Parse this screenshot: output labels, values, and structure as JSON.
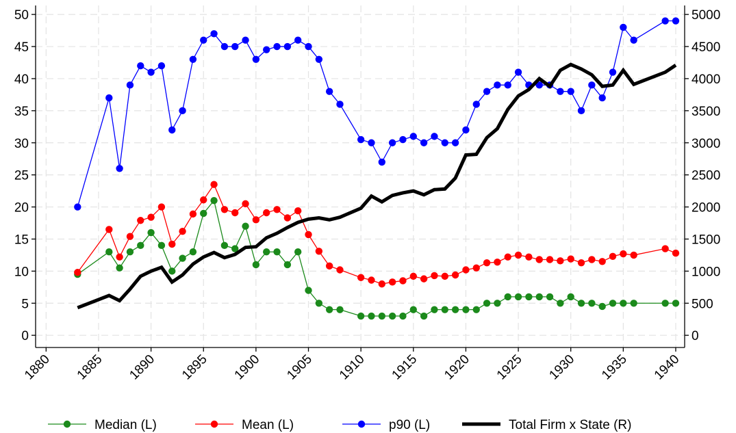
{
  "chart_data": {
    "type": "line",
    "x": [
      1883,
      1886,
      1887,
      1888,
      1889,
      1890,
      1891,
      1892,
      1893,
      1894,
      1895,
      1896,
      1897,
      1898,
      1899,
      1900,
      1901,
      1902,
      1903,
      1904,
      1905,
      1906,
      1907,
      1908,
      1910,
      1911,
      1912,
      1913,
      1914,
      1915,
      1916,
      1917,
      1918,
      1919,
      1920,
      1921,
      1922,
      1923,
      1924,
      1925,
      1926,
      1927,
      1928,
      1929,
      1930,
      1931,
      1932,
      1933,
      1934,
      1935,
      1936,
      1939,
      1940
    ],
    "series": [
      {
        "name": "Median (L)",
        "color": "#1b8a1b",
        "marker": true,
        "values": [
          9.5,
          13,
          10.5,
          13,
          14,
          16,
          14,
          10,
          12,
          13,
          19,
          21,
          14,
          13.5,
          17,
          11,
          13,
          13,
          11,
          13,
          7,
          5,
          4,
          4,
          3,
          3,
          3,
          3,
          3,
          4,
          3,
          4,
          4,
          4,
          4,
          4,
          5,
          5,
          6,
          6,
          6,
          6,
          6,
          5,
          6,
          5,
          5,
          4.5,
          5,
          5,
          5,
          5,
          5
        ]
      },
      {
        "name": "Mean (L)",
        "color": "#ff0000",
        "marker": true,
        "values": [
          9.8,
          16.5,
          12.2,
          15.4,
          17.9,
          18.4,
          20,
          14.2,
          16.2,
          18.9,
          21.1,
          23.5,
          19.6,
          19.1,
          20.5,
          18,
          19.1,
          19.6,
          18.3,
          19.4,
          15.7,
          13.1,
          10.8,
          10.2,
          9,
          8.6,
          8,
          8.3,
          8.5,
          9.2,
          8.8,
          9.3,
          9.2,
          9.4,
          10.2,
          10.5,
          11.3,
          11.4,
          12.2,
          12.5,
          12.2,
          11.8,
          11.8,
          11.6,
          11.9,
          11.3,
          11.8,
          11.5,
          12.3,
          12.7,
          12.5,
          13.5,
          12.8
        ]
      },
      {
        "name": "p90 (L)",
        "color": "#0000ff",
        "marker": true,
        "values": [
          20,
          37,
          26,
          39,
          42,
          41,
          42,
          32,
          35,
          43,
          46,
          47,
          45,
          45,
          46,
          43,
          44.5,
          45,
          45,
          46,
          45,
          43,
          38,
          36,
          30.5,
          30,
          27,
          30,
          30.5,
          31,
          30,
          31,
          30,
          30,
          32,
          36,
          38,
          39,
          39,
          41,
          39,
          39,
          39,
          38,
          38,
          35,
          39,
          37,
          41,
          48,
          46,
          49,
          49
        ]
      },
      {
        "name": "Total Firm x State (R)",
        "color": "#000000",
        "marker": false,
        "axis": "y2",
        "values": [
          430,
          620,
          540,
          720,
          920,
          1000,
          1060,
          830,
          940,
          1110,
          1220,
          1290,
          1210,
          1260,
          1370,
          1380,
          1520,
          1590,
          1680,
          1760,
          1810,
          1830,
          1800,
          1840,
          1980,
          2170,
          2080,
          2180,
          2220,
          2250,
          2190,
          2270,
          2280,
          2450,
          2810,
          2820,
          3080,
          3220,
          3520,
          3730,
          3830,
          4000,
          3880,
          4130,
          4220,
          4150,
          4060,
          3880,
          3900,
          4130,
          3910,
          4100,
          4210
        ]
      }
    ],
    "xlim": [
      1879,
      1940.85
    ],
    "xticks": [
      1880,
      1885,
      1890,
      1895,
      1900,
      1905,
      1910,
      1915,
      1920,
      1925,
      1930,
      1935,
      1940
    ],
    "ylim": [
      -1.9,
      51.4
    ],
    "yticks": [
      0,
      5,
      10,
      15,
      20,
      25,
      30,
      35,
      40,
      45,
      50
    ],
    "y2lim": [
      -190,
      5140
    ],
    "y2ticks": [
      0,
      500,
      1000,
      1500,
      2000,
      2500,
      3000,
      3500,
      4000,
      4500,
      5000
    ],
    "grid": true,
    "legend": "bottom"
  }
}
